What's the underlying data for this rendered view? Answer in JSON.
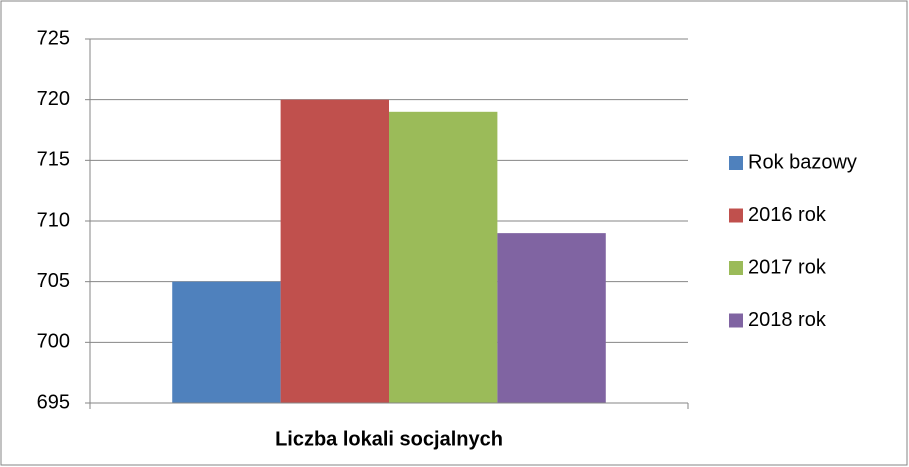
{
  "chart_data": {
    "type": "bar",
    "categories": [
      "Liczba lokali socjalnych"
    ],
    "series": [
      {
        "name": "Rok bazowy",
        "color": "#4f81bd",
        "values": [
          705
        ]
      },
      {
        "name": "2016 rok",
        "color": "#c0504d",
        "values": [
          720
        ]
      },
      {
        "name": "2017 rok",
        "color": "#9bbb59",
        "values": [
          719
        ]
      },
      {
        "name": "2018 rok",
        "color": "#8064a2",
        "values": [
          709
        ]
      }
    ],
    "ylim": [
      695,
      725
    ],
    "yticks": [
      695,
      700,
      705,
      710,
      715,
      720,
      725
    ],
    "grid": true,
    "legend": "right"
  }
}
